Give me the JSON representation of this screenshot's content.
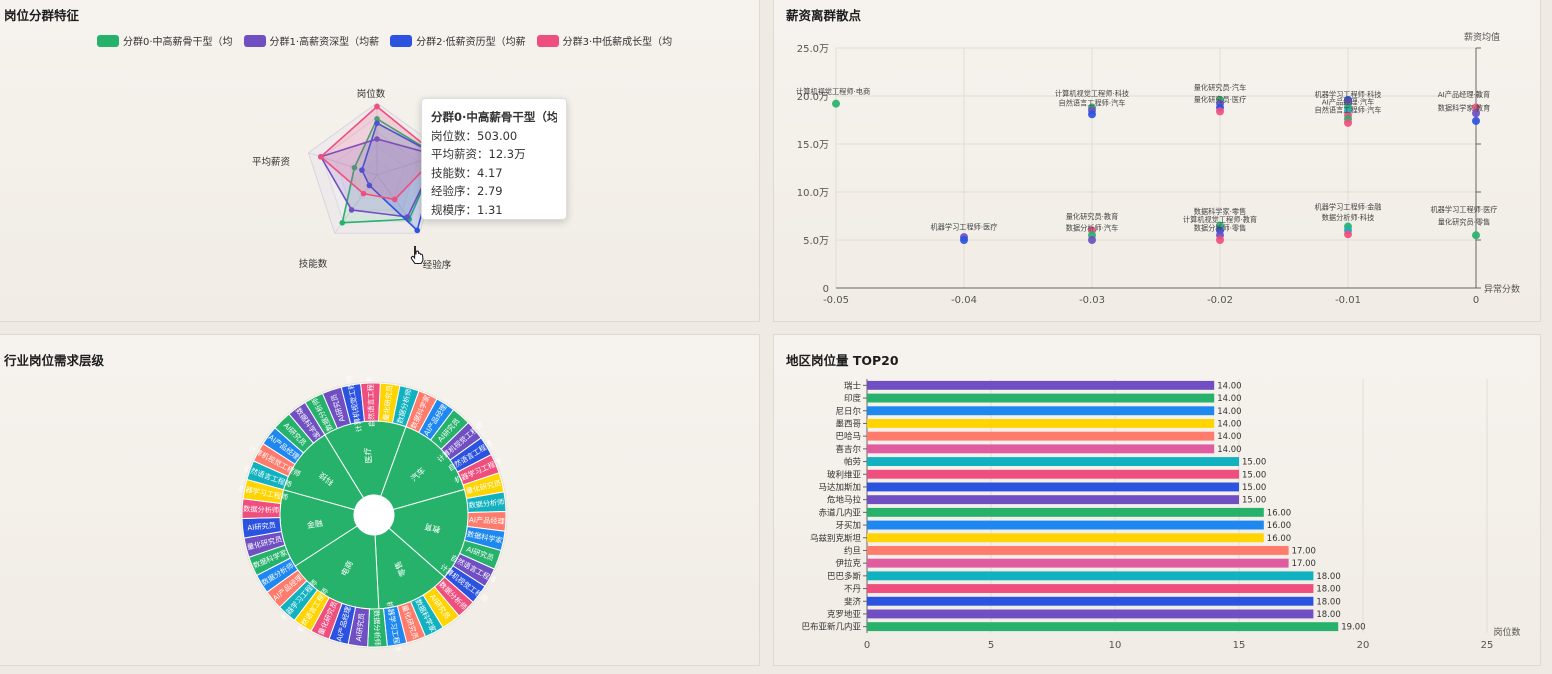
{
  "panels": {
    "cluster": {
      "title": "岗位分群特征",
      "legend": [
        {
          "label": "分群0·中高薪骨干型（均",
          "color": "#27b26b"
        },
        {
          "label": "分群1·高薪资深型（均薪",
          "color": "#6f4fc2"
        },
        {
          "label": "分群2·低薪资历型（均薪",
          "color": "#2b53e0"
        },
        {
          "label": "分群3·中低薪成长型（均",
          "color": "#ef4f7e"
        }
      ],
      "radar_indicators": [
        "岗位数",
        "平均薪资",
        "技能数",
        "经验序",
        "规模序"
      ],
      "radar_visible_labels": [
        "岗位数",
        "平均薪资",
        "技能数",
        "经验序"
      ],
      "radar_values": [
        [
          0.78,
          0.88,
          0.76,
          0.82,
          0.33
        ],
        [
          0.5,
          0.88,
          0.72,
          0.6,
          0.82
        ],
        [
          0.72,
          0.88,
          0.95,
          0.18,
          0.22
        ],
        [
          0.95,
          0.88,
          0.42,
          0.32,
          0.82
        ]
      ],
      "tooltip": {
        "title": "分群0·中高薪骨干型（均",
        "rows": [
          "岗位数：503.00",
          "平均薪资：12.3万",
          "技能数：4.17",
          "经验序：2.79",
          "规模序：1.31"
        ]
      }
    },
    "scatter": {
      "title": "薪资离群散点",
      "ylabel": "薪资均值",
      "xlabel": "异常分数",
      "yticks": [
        "25.0万",
        "20.0万",
        "15.0万",
        "10.0万",
        "5.0万",
        "0"
      ],
      "xticks": [
        "-0.05",
        "-0.04",
        "-0.03",
        "-0.02",
        "-0.01",
        "0"
      ],
      "labels": [
        {
          "text": "计算机视觉工程师·电商",
          "x": -0.05,
          "y": 20.2
        },
        {
          "text": "计算机视觉工程师·科技",
          "x": -0.03,
          "y": 20.0
        },
        {
          "text": "自然语言工程师·汽车",
          "x": -0.03,
          "y": 19.0
        },
        {
          "text": "量化研究员·汽车",
          "x": -0.02,
          "y": 20.6
        },
        {
          "text": "量化研究员·医疗",
          "x": -0.02,
          "y": 19.4
        },
        {
          "text": "机器学习工程师·科技",
          "x": -0.01,
          "y": 19.9
        },
        {
          "text": "AI产品经理·汽车",
          "x": -0.01,
          "y": 19.1
        },
        {
          "text": "自然语言工程师·汽车",
          "x": -0.01,
          "y": 18.3
        },
        {
          "text": "AI产品经理·教育",
          "x": 0.0,
          "y": 19.9
        },
        {
          "text": "数据科学家·教育",
          "x": 0.0,
          "y": 18.5
        },
        {
          "text": "机器学习工程师·医疗",
          "x": -0.04,
          "y": 6.1
        },
        {
          "text": "量化研究员·教育",
          "x": -0.03,
          "y": 7.2
        },
        {
          "text": "数据分析师·汽车",
          "x": -0.03,
          "y": 6.0
        },
        {
          "text": "数据科学家·零售",
          "x": -0.02,
          "y": 7.7
        },
        {
          "text": "计算机视觉工程师·教育",
          "x": -0.02,
          "y": 6.9
        },
        {
          "text": "数据分析师·零售",
          "x": -0.02,
          "y": 6.0
        },
        {
          "text": "机器学习工程师·金融",
          "x": -0.01,
          "y": 8.2
        },
        {
          "text": "数据分析师·科技",
          "x": -0.01,
          "y": 7.1
        },
        {
          "text": "机器学习工程师·医疗",
          "x": 0.0,
          "y": 7.9
        },
        {
          "text": "量化研究员·零售",
          "x": 0.0,
          "y": 6.6
        }
      ]
    },
    "sunburst": {
      "title": "行业岗位需求层级",
      "inner": [
        "医疗",
        "汽车",
        "教育",
        "零售",
        "电商",
        "金融",
        "科技"
      ],
      "outer_labels": [
        "数据分析师",
        "AI研究员",
        "计算机视觉工程师",
        "自然语言工程师",
        "量化研究员",
        "数据分析师",
        "数据科学家",
        "AI产品经理",
        "AI研究员",
        "计算机视觉工程师",
        "自然语言工程师",
        "机器学习工程师",
        "量化研究员",
        "数据分析师",
        "AI产品经理",
        "数据科学家",
        "AI研究员",
        "自然语言工程师",
        "计算机视觉工程师",
        "数据分析师",
        "AI研究员",
        "数据科学家",
        "量化研究员",
        "机器学习工程师",
        "数据分析师",
        "AI研究员",
        "AI产品经理",
        "量化研究员",
        "自然语言工程师",
        "机器学习工程师",
        "AI产品经理",
        "数据分析师",
        "数据科学家",
        "量化研究员",
        "AI研究员",
        "数据分析师",
        "机器学习工程师",
        "自然语言工程师",
        "计算机视觉工程师",
        "AI产品经理",
        "AI研究员",
        "数据科学家"
      ]
    },
    "region": {
      "title": "地区岗位量 TOP20",
      "xlabel": "岗位数",
      "xticks": [
        "0",
        "5",
        "10",
        "15",
        "20",
        "25"
      ]
    }
  },
  "chart_data": [
    {
      "type": "bar",
      "orientation": "horizontal",
      "title": "地区岗位量 TOP20",
      "xlabel": "岗位数",
      "xlim": [
        0,
        25
      ],
      "categories": [
        "瑞士",
        "印度",
        "尼日尔",
        "墨西哥",
        "巴哈马",
        "喜吉尔",
        "帕劳",
        "玻利维亚",
        "马达加斯加",
        "危地马拉",
        "赤道几内亚",
        "牙买加",
        "乌兹别克斯坦",
        "约旦",
        "伊拉克",
        "巴巴多斯",
        "不丹",
        "斐济",
        "克罗地亚",
        "巴布亚新几内亚"
      ],
      "values": [
        14,
        14,
        14,
        14,
        14,
        14,
        15,
        15,
        15,
        15,
        16,
        16,
        16,
        17,
        17,
        18,
        18,
        18,
        18,
        19
      ],
      "value_labels": [
        "14.00",
        "14.00",
        "14.00",
        "14.00",
        "14.00",
        "14.00",
        "15.00",
        "15.00",
        "15.00",
        "15.00",
        "16.00",
        "16.00",
        "16.00",
        "17.00",
        "17.00",
        "18.00",
        "18.00",
        "18.00",
        "18.00",
        "19.00"
      ],
      "colors": [
        "#6f4fc2",
        "#27b26b",
        "#1e88f0",
        "#ffd400",
        "#ff7b6b",
        "#e05ca0",
        "#12b1bf",
        "#ef4f7e",
        "#2b53e0",
        "#6f4fc2",
        "#27b26b",
        "#1e88f0",
        "#ffd400",
        "#ff7b6b",
        "#e05ca0",
        "#12b1bf",
        "#ef4f7e",
        "#2b53e0",
        "#6f4fc2",
        "#27b26b"
      ]
    },
    {
      "type": "scatter",
      "title": "薪资离群散点",
      "xlabel": "异常分数",
      "ylabel": "薪资均值",
      "xlim": [
        -0.05,
        0
      ],
      "ylim": [
        0,
        25
      ],
      "grid": true,
      "points": [
        {
          "x": -0.05,
          "y": 19.2,
          "c": "#27b26b"
        },
        {
          "x": -0.04,
          "y": 5.3,
          "c": "#6f4fc2"
        },
        {
          "x": -0.04,
          "y": 5.0,
          "c": "#2b53e0"
        },
        {
          "x": -0.03,
          "y": 18.8,
          "c": "#27b26b"
        },
        {
          "x": -0.03,
          "y": 18.5,
          "c": "#6f4fc2"
        },
        {
          "x": -0.03,
          "y": 18.1,
          "c": "#2b53e0"
        },
        {
          "x": -0.03,
          "y": 6.0,
          "c": "#ef4f7e"
        },
        {
          "x": -0.03,
          "y": 5.5,
          "c": "#27b26b"
        },
        {
          "x": -0.03,
          "y": 5.0,
          "c": "#6f4fc2"
        },
        {
          "x": -0.02,
          "y": 19.6,
          "c": "#27b26b"
        },
        {
          "x": -0.02,
          "y": 19.2,
          "c": "#6f4fc2"
        },
        {
          "x": -0.02,
          "y": 18.8,
          "c": "#2b53e0"
        },
        {
          "x": -0.02,
          "y": 18.4,
          "c": "#ef4f7e"
        },
        {
          "x": -0.02,
          "y": 6.5,
          "c": "#27b26b"
        },
        {
          "x": -0.02,
          "y": 6.0,
          "c": "#2b53e0"
        },
        {
          "x": -0.02,
          "y": 5.5,
          "c": "#6f4fc2"
        },
        {
          "x": -0.02,
          "y": 5.0,
          "c": "#ef4f7e"
        },
        {
          "x": -0.01,
          "y": 19.6,
          "c": "#2b53e0"
        },
        {
          "x": -0.01,
          "y": 19.2,
          "c": "#6f4fc2"
        },
        {
          "x": -0.01,
          "y": 18.8,
          "c": "#27b26b"
        },
        {
          "x": -0.01,
          "y": 18.4,
          "c": "#12b1bf"
        },
        {
          "x": -0.01,
          "y": 18.0,
          "c": "#ef4f7e"
        },
        {
          "x": -0.01,
          "y": 17.6,
          "c": "#27b26b"
        },
        {
          "x": -0.01,
          "y": 17.2,
          "c": "#ef4f7e"
        },
        {
          "x": -0.01,
          "y": 6.4,
          "c": "#27b26b"
        },
        {
          "x": -0.01,
          "y": 6.0,
          "c": "#12b1bf"
        },
        {
          "x": -0.01,
          "y": 5.6,
          "c": "#ef4f7e"
        },
        {
          "x": 0.0,
          "y": 18.8,
          "c": "#ef4f7e"
        },
        {
          "x": 0.0,
          "y": 18.2,
          "c": "#6f4fc2"
        },
        {
          "x": 0.0,
          "y": 17.4,
          "c": "#2b53e0"
        },
        {
          "x": 0.0,
          "y": 5.5,
          "c": "#27b26b"
        }
      ]
    }
  ],
  "colors": {
    "palette": [
      "#27b26b",
      "#6f4fc2",
      "#2b53e0",
      "#ef4f7e",
      "#ffd400",
      "#12b1bf",
      "#ff7b6b",
      "#1e88f0"
    ]
  },
  "cursor": {
    "icon": "hand-pointer-icon"
  }
}
